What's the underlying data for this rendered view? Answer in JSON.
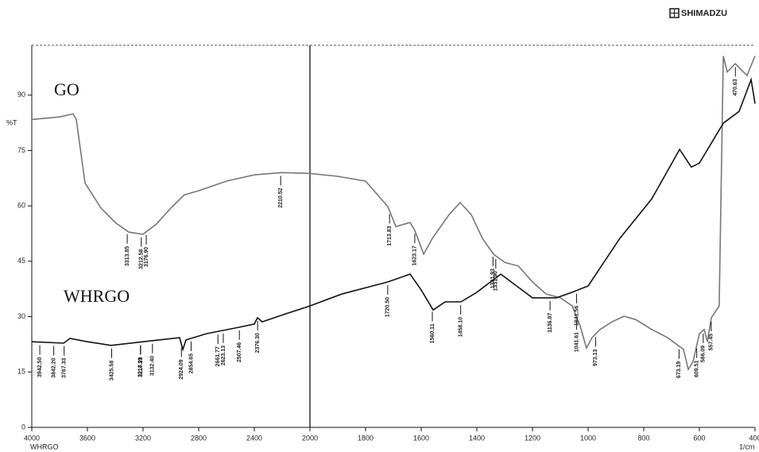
{
  "brand": "SHIMADZU",
  "chart_data": {
    "type": "line",
    "ylabel": "%T",
    "xlabel": "1/cm",
    "footer_label": "WHRGO",
    "xlim": [
      4000,
      400
    ],
    "xbreak": 2000,
    "ylim": [
      0,
      103.5
    ],
    "xticks": [
      4000,
      3600,
      3200,
      2800,
      2400,
      2000,
      1800,
      1600,
      1400,
      1200,
      1000,
      800,
      600,
      400
    ],
    "yticks": [
      0,
      15,
      30,
      45,
      60,
      75,
      90
    ],
    "series": [
      {
        "name": "GO",
        "color": "#777777",
        "x": [
          4000,
          3800,
          3703,
          3680,
          3617,
          3503,
          3400,
          3303,
          3200,
          3103,
          3000,
          2903,
          2800,
          2600,
          2400,
          2200,
          2000,
          1900,
          1800,
          1720,
          1691,
          1640,
          1623,
          1591,
          1560,
          1500,
          1460,
          1420,
          1380,
          1340,
          1300,
          1251,
          1200,
          1151,
          1100,
          1057,
          1029,
          1006,
          986,
          957,
          914,
          871,
          829,
          771,
          714,
          657,
          640,
          623,
          600,
          583,
          571,
          557,
          529,
          514,
          500,
          471,
          429,
          400
        ],
        "values": [
          83.4,
          84.1,
          84.9,
          83.4,
          66.2,
          59.4,
          55.5,
          52.9,
          52.3,
          55.1,
          59.4,
          63,
          64.1,
          66.7,
          68.4,
          69,
          68.8,
          68,
          66.7,
          59.8,
          54.4,
          55.5,
          53.3,
          46.9,
          51.2,
          57.6,
          60.9,
          57.6,
          51.2,
          46.9,
          44.7,
          43.7,
          39.4,
          36.1,
          35.1,
          32.9,
          27.5,
          21.5,
          24.3,
          26.5,
          28.6,
          30.1,
          29.2,
          26.5,
          24.3,
          21.1,
          15.7,
          17.8,
          25.4,
          26.5,
          23.2,
          29.7,
          32.9,
          100.6,
          96.3,
          98.5,
          95.3,
          100.6
        ],
        "peaks": [
          3313.85,
          3212.58,
          {
            "value": 3176.9,
            "label": "3176.90"
          },
          2210.52,
          1713.83,
          1623.17,
          1341.93,
          {
            "value": 1331.9,
            "label": "1331.90"
          },
          1041.61,
          973.13,
          673.19,
          609.51,
          586.09,
          557.45,
          470.63
        ]
      },
      {
        "name": "WHRGO",
        "color": "#111111",
        "x": [
          4000,
          3771,
          3726,
          3600,
          3429,
          3200,
          3086,
          2937,
          2914,
          2891,
          2743,
          2514,
          2400,
          2377,
          2343,
          2171,
          2000,
          1886,
          1720,
          1640,
          1600,
          1557,
          1514,
          1457,
          1400,
          1314,
          1257,
          1200,
          1114,
          1057,
          1000,
          886,
          771,
          671,
          629,
          600,
          514,
          457,
          414,
          400
        ],
        "values": [
          23.2,
          22.8,
          24.1,
          23.2,
          22.2,
          23.2,
          23.7,
          24.3,
          21.1,
          23.7,
          25.4,
          27.1,
          28,
          29.7,
          28.6,
          30.8,
          32.9,
          36.1,
          39.4,
          41.5,
          37.2,
          31.8,
          34,
          34,
          36.6,
          41.5,
          38.3,
          35.1,
          35.1,
          36.6,
          38.3,
          51.2,
          61.9,
          75.3,
          70.5,
          71.6,
          82.4,
          85.6,
          94.2,
          87.7
        ],
        "peaks": [
          {
            "value": 3942.5,
            "label": "3942.50"
          },
          {
            "value": 3842.2,
            "label": "3842.20"
          },
          3767.33,
          3425.58,
          3218.99,
          3217.21,
          {
            "value": 3132.4,
            "label": "3132.40"
          },
          2924.09,
          2854.65,
          2661.77,
          2623.13,
          2507.46,
          {
            "value": 2376.3,
            "label": "2376.30"
          },
          {
            "value": 1720.5,
            "label": "1720.50"
          },
          1560.11,
          {
            "value": 1458.1,
            "label": "1458.10"
          },
          1136.87,
          1041.56
        ]
      }
    ]
  }
}
